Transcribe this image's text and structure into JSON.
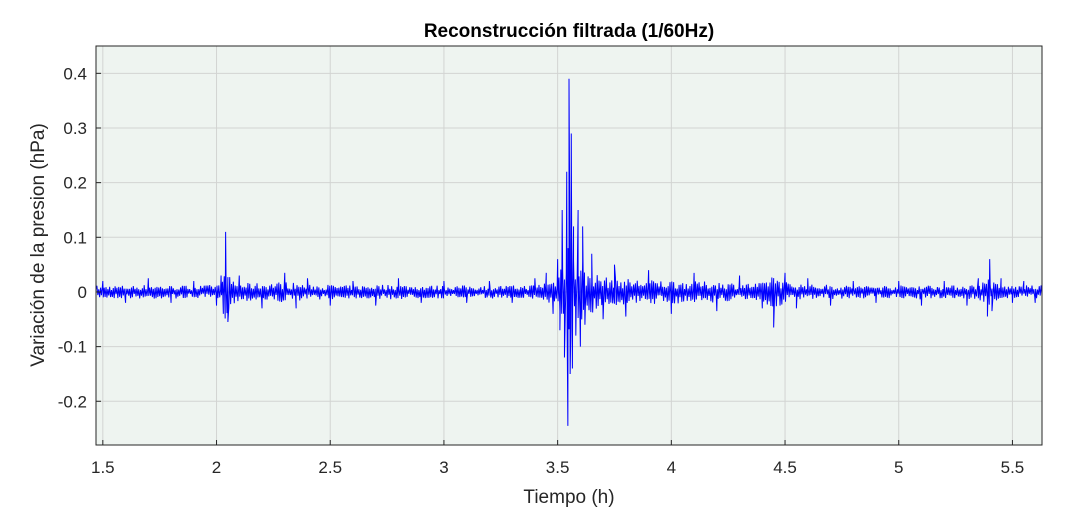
{
  "chart_data": {
    "type": "line",
    "title": "Reconstrucción filtrada (1/60Hz)",
    "xlabel": "Tiempo (h)",
    "ylabel": "Variación de la presion (hPa)",
    "xlim": [
      1.47,
      5.63
    ],
    "ylim": [
      -0.28,
      0.45
    ],
    "xticks": [
      1.5,
      2,
      2.5,
      3,
      3.5,
      4,
      4.5,
      5,
      5.5
    ],
    "xtick_labels": [
      "1.5",
      "2",
      "2.5",
      "3",
      "3.5",
      "4",
      "4.5",
      "5",
      "5.5"
    ],
    "yticks": [
      -0.2,
      -0.1,
      0,
      0.1,
      0.2,
      0.3,
      0.4
    ],
    "ytick_labels": [
      "-0.2",
      "-0.1",
      "0",
      "0.1",
      "0.2",
      "0.3",
      "0.4"
    ],
    "grid": true,
    "plot_background": "#eef4f0",
    "line_color": "#0000ff",
    "series": [
      {
        "sampling_step_h": 0.004,
        "x": [
          1.47,
          1.5,
          1.6,
          1.7,
          1.8,
          1.9,
          2.0,
          2.02,
          2.03,
          2.04,
          2.05,
          2.1,
          2.2,
          2.3,
          2.35,
          2.4,
          2.5,
          2.6,
          2.7,
          2.8,
          2.9,
          3.0,
          3.1,
          3.2,
          3.3,
          3.4,
          3.45,
          3.48,
          3.5,
          3.51,
          3.52,
          3.53,
          3.54,
          3.545,
          3.55,
          3.555,
          3.56,
          3.565,
          3.57,
          3.58,
          3.59,
          3.6,
          3.61,
          3.62,
          3.65,
          3.7,
          3.75,
          3.8,
          3.9,
          4.0,
          4.1,
          4.2,
          4.3,
          4.4,
          4.45,
          4.5,
          4.55,
          4.6,
          4.7,
          4.8,
          4.9,
          5.0,
          5.1,
          5.2,
          5.3,
          5.35,
          5.39,
          5.4,
          5.41,
          5.45,
          5.5,
          5.55,
          5.6,
          5.63
        ],
        "y": [
          0.005,
          0.02,
          -0.02,
          0.025,
          -0.02,
          0.02,
          -0.025,
          0.03,
          -0.04,
          0.11,
          -0.055,
          0.03,
          -0.03,
          0.035,
          -0.03,
          0.025,
          -0.025,
          0.02,
          -0.025,
          0.025,
          -0.02,
          0.02,
          -0.02,
          0.02,
          -0.02,
          0.025,
          0.035,
          -0.04,
          0.06,
          -0.07,
          0.15,
          -0.12,
          0.22,
          -0.245,
          0.39,
          -0.15,
          0.29,
          -0.14,
          0.12,
          -0.08,
          0.15,
          -0.1,
          0.12,
          -0.06,
          0.07,
          -0.05,
          0.05,
          -0.045,
          0.04,
          -0.04,
          0.035,
          -0.035,
          0.03,
          -0.03,
          -0.065,
          0.035,
          -0.03,
          0.025,
          -0.025,
          0.02,
          -0.02,
          0.02,
          -0.025,
          0.02,
          -0.025,
          0.025,
          -0.045,
          0.06,
          -0.035,
          0.025,
          -0.02,
          0.02,
          -0.02,
          0.005
        ]
      }
    ]
  }
}
